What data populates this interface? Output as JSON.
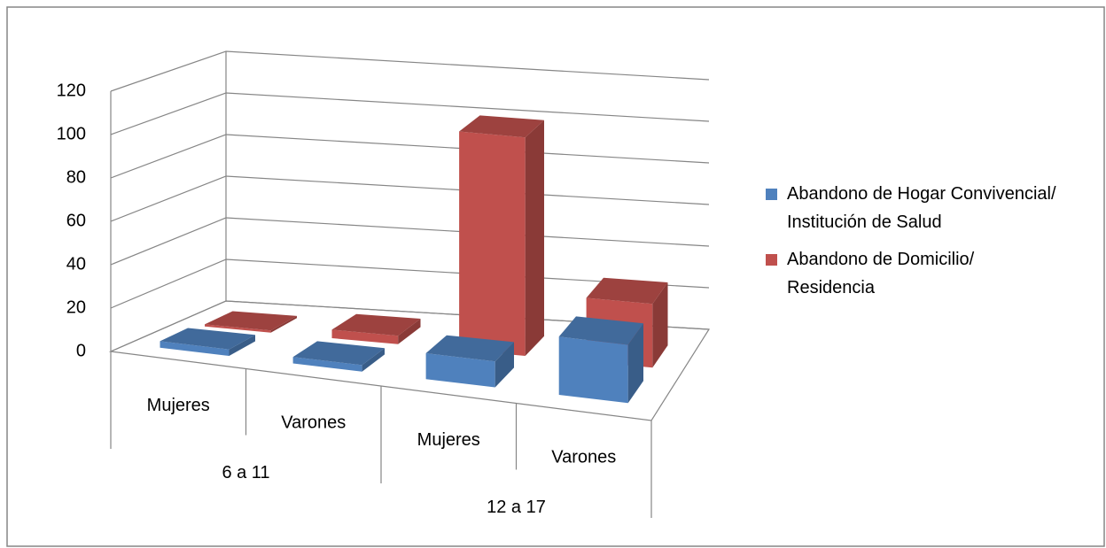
{
  "chart_data": {
    "type": "bar3d",
    "categories": [
      "Mujeres",
      "Varones",
      "Mujeres",
      "Varones"
    ],
    "groups": [
      {
        "name": "6 a 11",
        "categories": [
          "Mujeres",
          "Varones"
        ]
      },
      {
        "name": "12 a 17",
        "categories": [
          "Mujeres",
          "Varones"
        ]
      }
    ],
    "series": [
      {
        "name": "Abandono de Hogar Convivencial/ Institución de Salud",
        "color": "#4f81bd",
        "values": [
          3,
          3,
          12,
          27
        ]
      },
      {
        "name": "Abandono de Domicilio/ Residencia",
        "color": "#c0504d",
        "values": [
          1,
          4,
          103,
          30
        ]
      }
    ],
    "ylim": [
      0,
      120
    ],
    "yticks": [
      0,
      20,
      40,
      60,
      80,
      100,
      120
    ],
    "grid": true,
    "legend": "right"
  }
}
